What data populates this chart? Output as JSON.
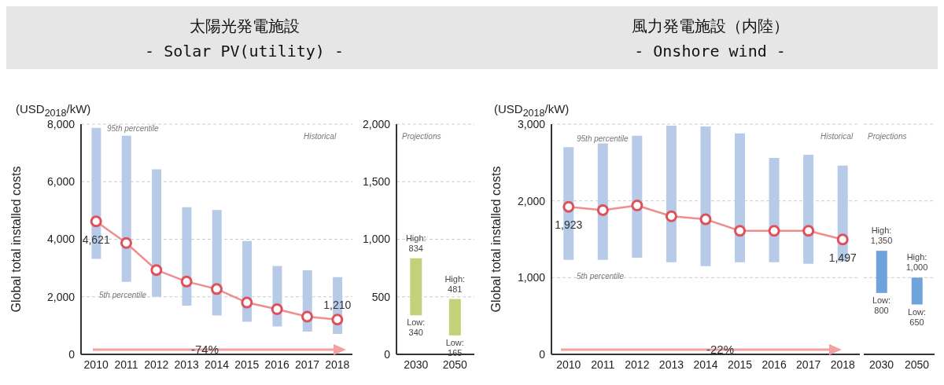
{
  "chart_data": [
    {
      "type": "bar",
      "title": "太陽光発電施設",
      "subtitle": "- Solar PV(utility) -",
      "ylabel": "Global total installed costs",
      "categories": [
        "2010",
        "2011",
        "2012",
        "2013",
        "2014",
        "2015",
        "2016",
        "2017",
        "2018"
      ],
      "series": [
        {
          "type": "bar",
          "color": "#b7cbe8",
          "base": [
            3320,
            2520,
            2000,
            1690,
            1350,
            1130,
            970,
            790,
            710
          ],
          "values": [
            4550,
            5080,
            4430,
            3420,
            3670,
            2810,
            2100,
            2130,
            1970
          ]
        },
        {
          "type": "line",
          "color": "#ef8e8e",
          "marker": "circle",
          "values": [
            4621,
            3870,
            2930,
            2530,
            2270,
            1800,
            1570,
            1310,
            1210
          ],
          "value_labels": [
            "4,621",
            null,
            null,
            null,
            null,
            null,
            null,
            null,
            "1,210"
          ]
        }
      ],
      "ylim": [
        0,
        8000
      ],
      "yticks": [
        {
          "value": 0,
          "label": "0"
        },
        {
          "value": 2000,
          "label": "2,000"
        },
        {
          "value": 4000,
          "label": "4,000"
        },
        {
          "value": 6000,
          "label": "6,000"
        },
        {
          "value": 8000,
          "label": "8,000"
        }
      ],
      "grid": "y",
      "annotations": [
        "(USD$_{2018}$/kW)",
        "95th percentile",
        "5th percentile",
        "Historical",
        "-74%"
      ]
    },
    {
      "type": "bar",
      "categories": [
        "2030",
        "2050"
      ],
      "series": [
        {
          "type": "bar",
          "color": "#c3d17a",
          "base": [
            340,
            165
          ],
          "values": [
            494,
            316
          ]
        }
      ],
      "ylim": [
        0,
        2000
      ],
      "yticks": [
        {
          "value": 0,
          "label": "0"
        },
        500,
        {
          "value": 1000,
          "label": "1,000"
        },
        {
          "value": 1500,
          "label": "1,500"
        },
        {
          "value": 2000,
          "label": "2,000"
        }
      ],
      "grid": "y",
      "annotations": [
        "Projections",
        {
          "text": "High: 834",
          "x": "2030",
          "y": 834
        },
        {
          "text": "Low: 340",
          "x": "2030",
          "y": 340
        },
        {
          "text": "High: 481",
          "x": "2050",
          "y": 481
        },
        {
          "text": "Low: 165",
          "x": "2050",
          "y": 165
        }
      ]
    },
    {
      "type": "bar",
      "title": "風力発電施設（内陸）",
      "subtitle": "- Onshore wind -",
      "ylabel": "Global total installed costs",
      "categories": [
        "2010",
        "2011",
        "2012",
        "2013",
        "2014",
        "2015",
        "2016",
        "2017",
        "2018"
      ],
      "series": [
        {
          "type": "bar",
          "color": "#b7cbe8",
          "base": [
            1230,
            1230,
            1260,
            1200,
            1150,
            1200,
            1200,
            1180,
            1210
          ],
          "values": [
            1470,
            1520,
            1590,
            1780,
            1820,
            1680,
            1360,
            1420,
            1250
          ]
        },
        {
          "type": "line",
          "color": "#ef8e8e",
          "marker": "circle",
          "values": [
            1923,
            1880,
            1940,
            1800,
            1760,
            1610,
            1610,
            1610,
            1497
          ],
          "value_labels": [
            "1,923",
            null,
            null,
            null,
            null,
            null,
            null,
            null,
            "1,497"
          ]
        }
      ],
      "ylim": [
        0,
        3000
      ],
      "yticks": [
        {
          "value": 0,
          "label": "0"
        },
        {
          "value": 1000,
          "label": "1,000"
        },
        {
          "value": 2000,
          "label": "2,000"
        },
        {
          "value": 3000,
          "label": "3,000"
        }
      ],
      "grid": "y",
      "annotations": [
        "(USD$_{2018}$/kW)",
        "95th percentile",
        "5th percentile",
        "Historical",
        "-22%"
      ]
    },
    {
      "type": "bar",
      "categories": [
        "2030",
        "2050"
      ],
      "series": [
        {
          "type": "bar",
          "color": "#6fa3dc",
          "base": [
            800,
            650
          ],
          "values": [
            550,
            350
          ]
        }
      ],
      "ylim": [
        0,
        3000
      ],
      "yticks": [
        {
          "value": 0,
          "label": null
        },
        {
          "value": 1000,
          "label": null
        },
        {
          "value": 2000,
          "label": null
        },
        {
          "value": 3000,
          "label": null
        }
      ],
      "grid": "y",
      "tick_labels": "x",
      "annotations": [
        "Projections",
        {
          "text": "High: 1,350",
          "x": "2030",
          "y": 1350
        },
        {
          "text": "Low: 800",
          "x": "2030",
          "y": 800
        },
        {
          "text": "High: 1,000",
          "x": "2050",
          "y": 1000
        },
        {
          "text": "Low: 650",
          "x": "2050",
          "y": 650
        }
      ]
    }
  ]
}
